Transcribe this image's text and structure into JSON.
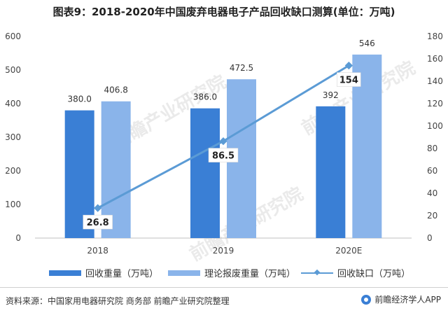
{
  "title": "图表9：2018-2020年中国废弃电器电子产品回收缺口测算(单位：万吨)",
  "watermark_text": "前瞻产业研究院",
  "source": "资料来源：中国家用电器研究院 商务部 前瞻产业研究院整理",
  "brand": "前瞻经济学人APP",
  "legend": {
    "recycle": "回收重量（万吨）",
    "theory": "理论报废重量（万吨）",
    "gap": "回收缺口（万吨）"
  },
  "colors": {
    "recycle": "#3a7fd5",
    "theory": "#8ab4ea",
    "gap": "#5b9bd5"
  },
  "chart_data": {
    "type": "bar",
    "categories": [
      "2018",
      "2019",
      "2020E"
    ],
    "series": [
      {
        "name": "回收重量（万吨）",
        "type": "bar",
        "axis": "left",
        "values": [
          380.0,
          386.0,
          392
        ],
        "labels": [
          "380.0",
          "386.0",
          "392"
        ]
      },
      {
        "name": "理论报废重量（万吨）",
        "type": "bar",
        "axis": "left",
        "values": [
          406.8,
          472.5,
          546
        ],
        "labels": [
          "406.8",
          "472.5",
          "546"
        ]
      },
      {
        "name": "回收缺口（万吨）",
        "type": "line",
        "axis": "right",
        "values": [
          26.8,
          86.5,
          154
        ],
        "labels": [
          "26.8",
          "86.5",
          "154"
        ]
      }
    ],
    "y_left": {
      "min": 0,
      "max": 600,
      "ticks": [
        "0",
        "100",
        "200",
        "300",
        "400",
        "500",
        "600"
      ]
    },
    "y_right": {
      "min": 0,
      "max": 180,
      "ticks": [
        "0",
        "20",
        "40",
        "60",
        "80",
        "100",
        "120",
        "140",
        "160",
        "180"
      ]
    },
    "grid": false,
    "legend_position": "bottom"
  }
}
